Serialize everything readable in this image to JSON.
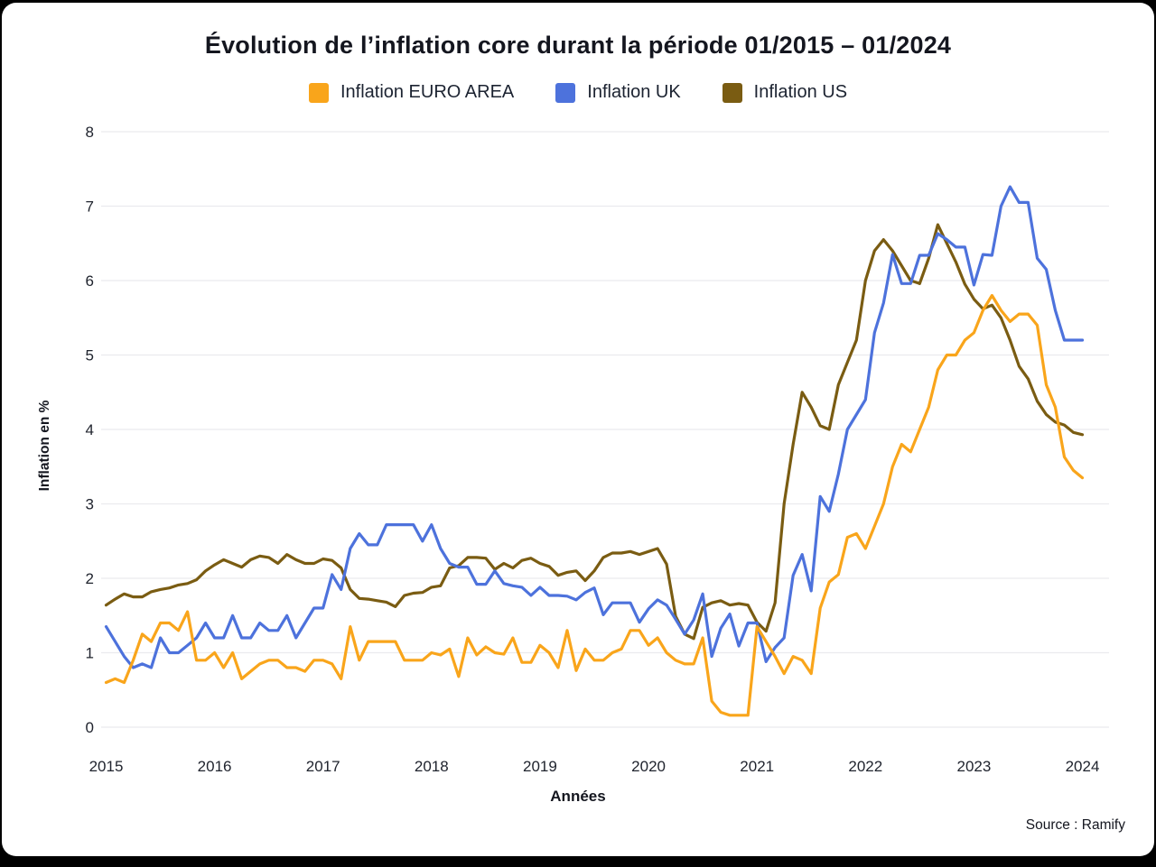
{
  "frame": {
    "background": "#000000",
    "card_background": "#ffffff",
    "gridline_color": "#ebebee"
  },
  "title": "Évolution de l’inflation core durant la période 01/2015 – 01/2024",
  "legend": {
    "items": [
      {
        "label": "Inflation EURO AREA",
        "color": "#F9A51B"
      },
      {
        "label": "Inflation UK",
        "color": "#4D72DC"
      },
      {
        "label": "Inflation US",
        "color": "#7A5C12"
      }
    ]
  },
  "source": "Source : Ramify",
  "chart_data": {
    "type": "line",
    "title": "Évolution de l’inflation core durant la période 01/2015 – 01/2024",
    "xlabel": "Années",
    "ylabel": "Inflation en %",
    "x_start": "2015-01",
    "x_end": "2024-01",
    "x_frequency": "monthly",
    "ylim": [
      0,
      8
    ],
    "yticks": [
      "0",
      "1",
      "2",
      "3",
      "4",
      "5",
      "6",
      "7",
      "8"
    ],
    "xticks": [
      "2015",
      "2016",
      "2017",
      "2018",
      "2019",
      "2020",
      "2021",
      "2022",
      "2023",
      "2024"
    ],
    "xtick_month_index": [
      0,
      12,
      24,
      36,
      48,
      60,
      72,
      84,
      96,
      108
    ],
    "grid": "horizontal",
    "legend_position": "top",
    "draw_order": [
      2,
      1,
      0
    ],
    "series": [
      {
        "name": "Inflation EURO AREA",
        "color": "#F9A51B",
        "values": [
          0.6,
          0.65,
          0.6,
          0.9,
          1.25,
          1.15,
          1.4,
          1.4,
          1.3,
          1.55,
          0.9,
          0.9,
          1.0,
          0.8,
          1.0,
          0.65,
          0.75,
          0.85,
          0.9,
          0.9,
          0.8,
          0.8,
          0.75,
          0.9,
          0.9,
          0.85,
          0.65,
          1.35,
          0.9,
          1.15,
          1.15,
          1.15,
          1.15,
          0.9,
          0.9,
          0.9,
          1.0,
          0.97,
          1.05,
          0.68,
          1.2,
          0.97,
          1.08,
          1.0,
          0.98,
          1.2,
          0.87,
          0.87,
          1.1,
          1.0,
          0.8,
          1.3,
          0.76,
          1.05,
          0.9,
          0.9,
          1.0,
          1.05,
          1.3,
          1.3,
          1.1,
          1.2,
          1.0,
          0.9,
          0.85,
          0.85,
          1.2,
          0.35,
          0.2,
          0.16,
          0.16,
          0.16,
          1.35,
          1.15,
          0.95,
          0.72,
          0.95,
          0.9,
          0.72,
          1.6,
          1.95,
          2.05,
          2.55,
          2.6,
          2.4,
          2.7,
          3.0,
          3.5,
          3.8,
          3.7,
          4.0,
          4.3,
          4.8,
          5.0,
          5.0,
          5.2,
          5.3,
          5.6,
          5.8,
          5.6,
          5.45,
          5.55,
          5.55,
          5.4,
          4.6,
          4.3,
          3.63,
          3.45,
          3.35
        ]
      },
      {
        "name": "Inflation UK",
        "color": "#4D72DC",
        "values": [
          1.35,
          1.15,
          0.95,
          0.8,
          0.85,
          0.8,
          1.2,
          1.0,
          1.0,
          1.1,
          1.2,
          1.4,
          1.2,
          1.2,
          1.5,
          1.2,
          1.2,
          1.4,
          1.3,
          1.3,
          1.5,
          1.2,
          1.4,
          1.6,
          1.6,
          2.05,
          1.85,
          2.4,
          2.6,
          2.45,
          2.45,
          2.72,
          2.72,
          2.72,
          2.72,
          2.5,
          2.72,
          2.4,
          2.2,
          2.15,
          2.15,
          1.92,
          1.92,
          2.1,
          1.93,
          1.9,
          1.88,
          1.77,
          1.88,
          1.77,
          1.77,
          1.76,
          1.71,
          1.81,
          1.87,
          1.51,
          1.67,
          1.67,
          1.67,
          1.41,
          1.59,
          1.71,
          1.64,
          1.45,
          1.25,
          1.44,
          1.79,
          0.95,
          1.33,
          1.52,
          1.09,
          1.4,
          1.4,
          0.88,
          1.07,
          1.2,
          2.04,
          2.32,
          1.83,
          3.1,
          2.9,
          3.4,
          4.0,
          4.2,
          4.4,
          5.3,
          5.7,
          6.35,
          5.96,
          5.96,
          6.34,
          6.34,
          6.63,
          6.55,
          6.45,
          6.45,
          5.94,
          6.35,
          6.34,
          7.0,
          7.26,
          7.05,
          7.05,
          6.3,
          6.15,
          5.6,
          5.2,
          5.2,
          5.2
        ]
      },
      {
        "name": "Inflation US",
        "color": "#7A5C12",
        "values": [
          1.64,
          1.72,
          1.79,
          1.75,
          1.75,
          1.82,
          1.85,
          1.87,
          1.91,
          1.93,
          1.98,
          2.1,
          2.18,
          2.25,
          2.2,
          2.15,
          2.25,
          2.3,
          2.28,
          2.2,
          2.32,
          2.25,
          2.2,
          2.2,
          2.26,
          2.24,
          2.14,
          1.85,
          1.73,
          1.72,
          1.7,
          1.68,
          1.62,
          1.77,
          1.8,
          1.81,
          1.88,
          1.9,
          2.14,
          2.17,
          2.28,
          2.28,
          2.27,
          2.12,
          2.2,
          2.14,
          2.24,
          2.27,
          2.2,
          2.16,
          2.04,
          2.08,
          2.1,
          1.97,
          2.1,
          2.28,
          2.34,
          2.34,
          2.36,
          2.32,
          2.36,
          2.4,
          2.19,
          1.49,
          1.25,
          1.19,
          1.61,
          1.67,
          1.7,
          1.64,
          1.66,
          1.64,
          1.41,
          1.29,
          1.67,
          3.0,
          3.8,
          4.5,
          4.3,
          4.05,
          4.0,
          4.6,
          4.9,
          5.2,
          6.0,
          6.4,
          6.55,
          6.4,
          6.2,
          6.0,
          5.96,
          6.3,
          6.75,
          6.5,
          6.25,
          5.95,
          5.75,
          5.62,
          5.67,
          5.5,
          5.2,
          4.85,
          4.68,
          4.38,
          4.2,
          4.1,
          4.06,
          3.96,
          3.93
        ]
      }
    ]
  }
}
